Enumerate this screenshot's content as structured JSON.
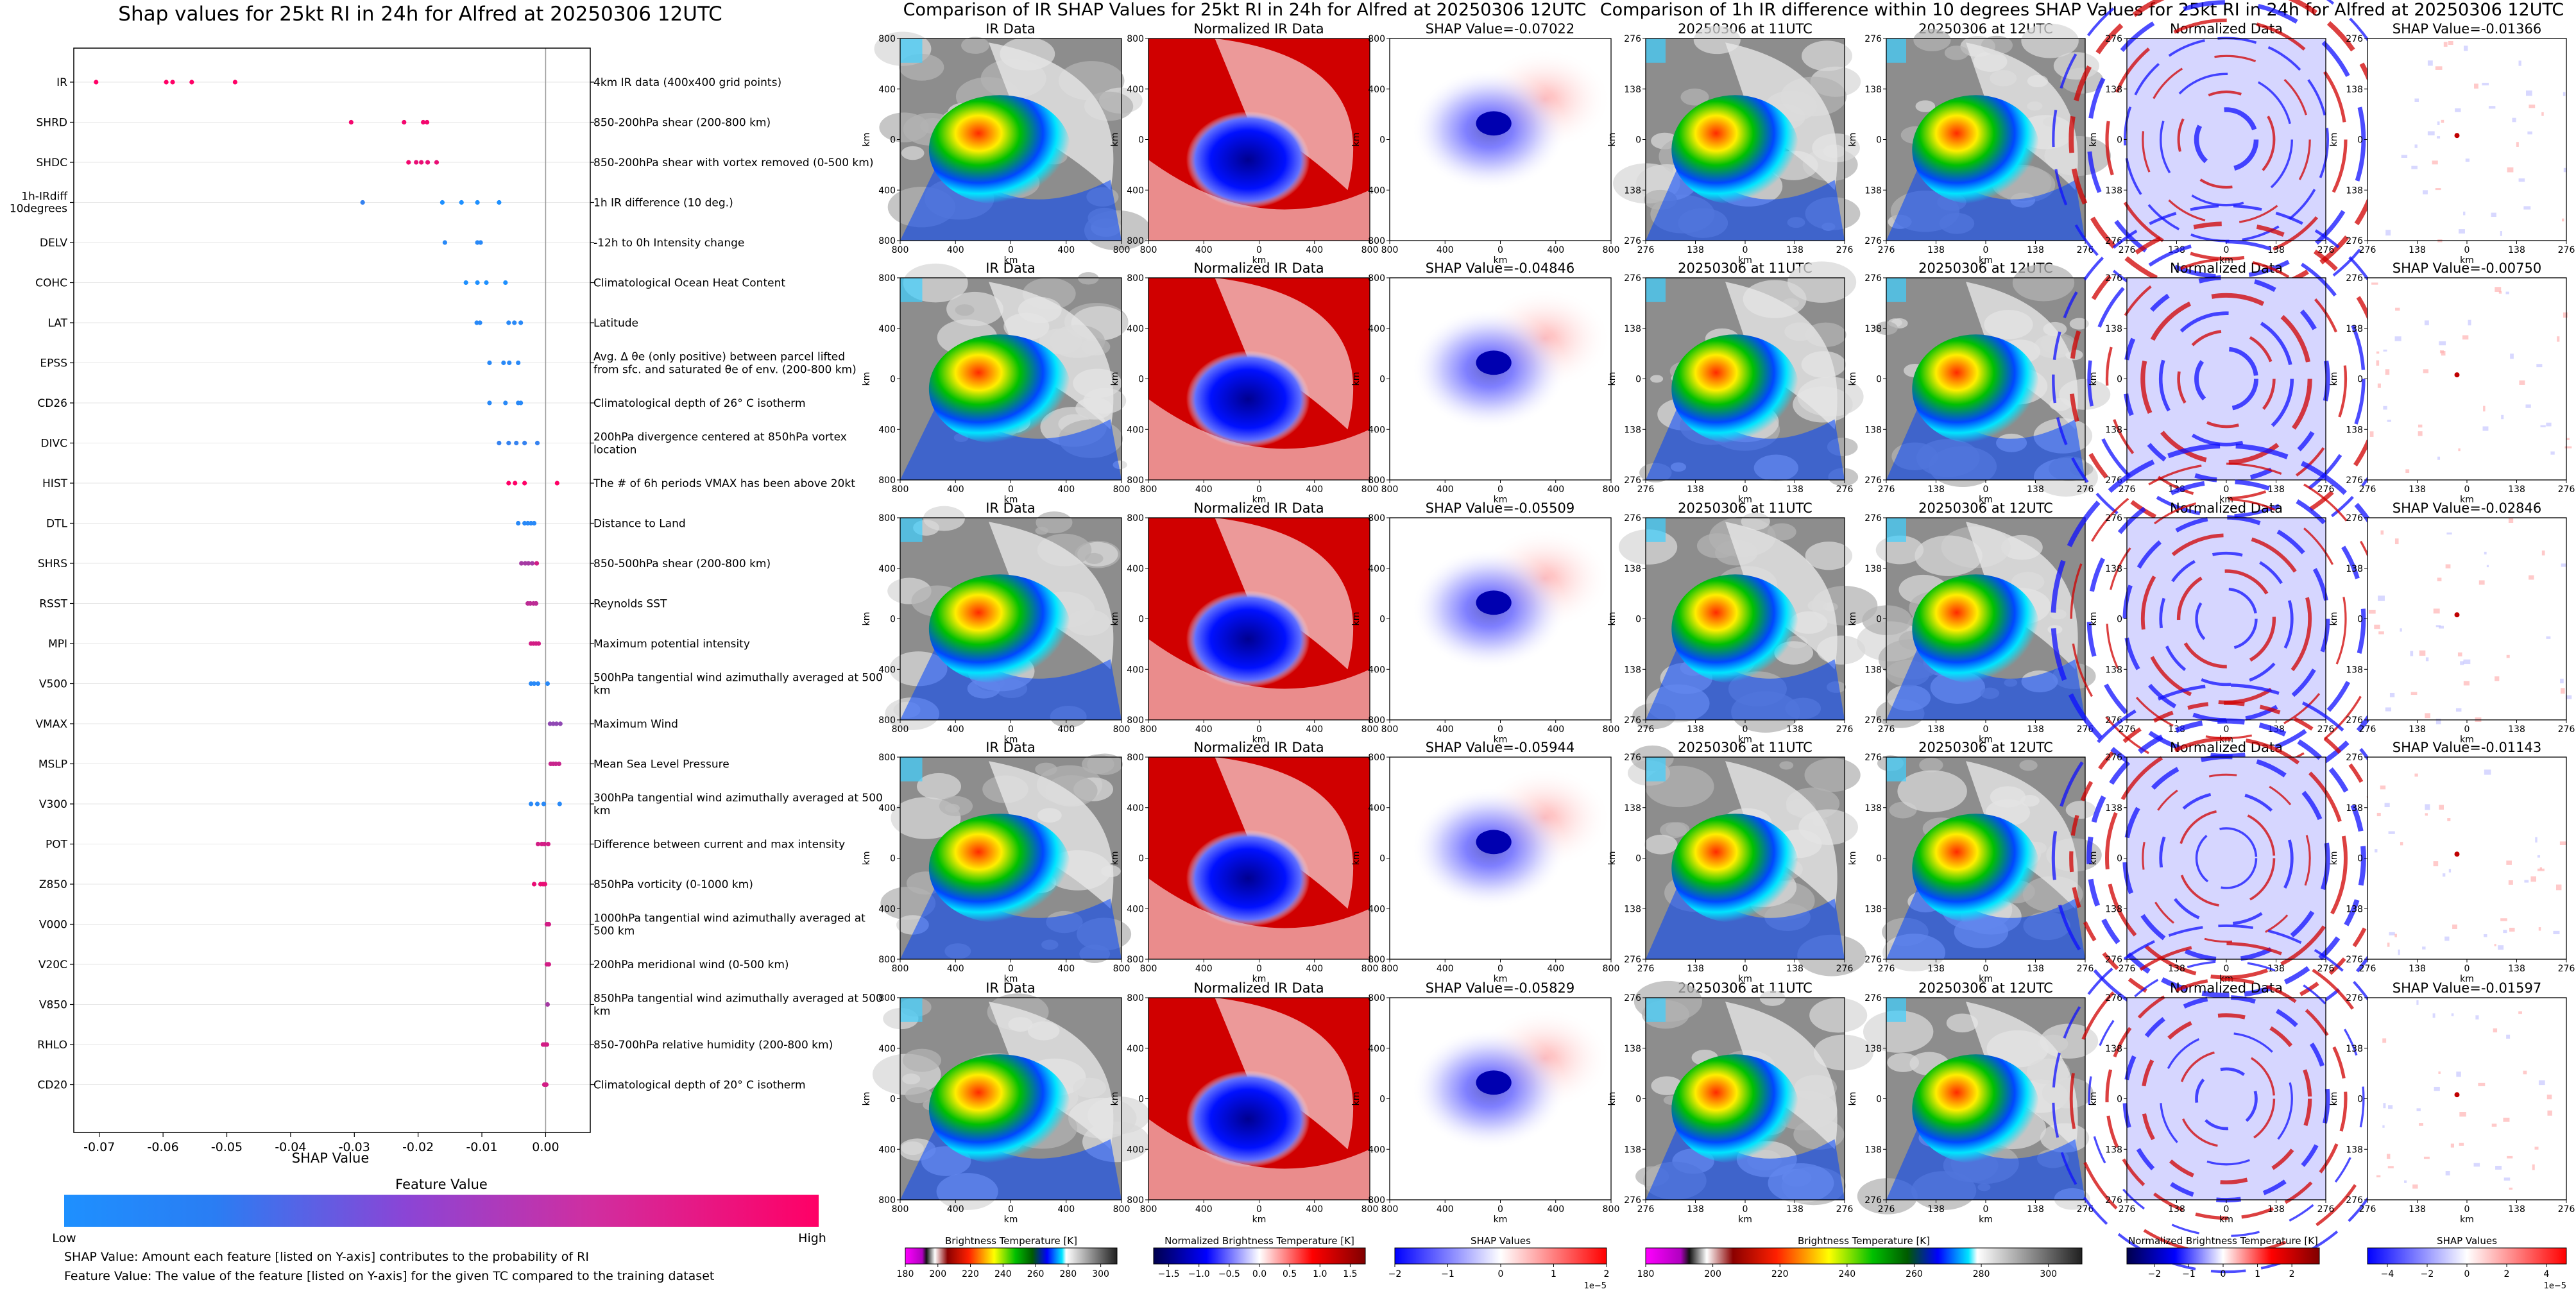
{
  "left_panel": {
    "title": "Shap values for 25kt RI in 24h for Alfred at 20250306 12UTC",
    "xlabel": "SHAP Value",
    "x_ticks": [
      "-0.07",
      "-0.06",
      "-0.05",
      "-0.04",
      "-0.03",
      "-0.02",
      "-0.01",
      "0.00"
    ],
    "colorbar_title": "Feature Value",
    "colorbar_low": "Low",
    "colorbar_high": "High",
    "footnote_1": "SHAP Value: Amount each feature [listed on Y-axis] contributes to the probability of RI",
    "footnote_2": "Feature Value: The value of the feature [listed on Y-axis] for the given TC compared to the training dataset"
  },
  "chart_data": [
    {
      "type": "scatter",
      "title": "Shap values for 25kt RI in 24h for Alfred at 20250306 12UTC",
      "xlabel": "SHAP Value",
      "xlim": [
        -0.074,
        0.007
      ],
      "color_scale": [
        "#1e90ff",
        "#ff0066"
      ],
      "features": [
        {
          "name": "IR",
          "desc": "4km IR data (400x400 grid points)",
          "points": [
            [
              -0.0705,
              1.0
            ],
            [
              -0.0595,
              1.0
            ],
            [
              -0.0585,
              1.0
            ],
            [
              -0.0555,
              1.0
            ],
            [
              -0.0487,
              1.0
            ]
          ]
        },
        {
          "name": "SHRD",
          "desc": "850-200hPa shear (200-800 km)",
          "points": [
            [
              -0.0305,
              0.95
            ],
            [
              -0.0222,
              0.95
            ],
            [
              -0.0192,
              0.95
            ],
            [
              -0.0186,
              0.95
            ]
          ]
        },
        {
          "name": "SHDC",
          "desc": "850-200hPa shear with vortex removed (0-500 km)",
          "points": [
            [
              -0.0215,
              0.95
            ],
            [
              -0.0203,
              0.9
            ],
            [
              -0.0195,
              0.9
            ],
            [
              -0.0185,
              0.9
            ],
            [
              -0.0171,
              0.9
            ]
          ]
        },
        {
          "name": "1h-IRdiff 10degrees",
          "desc": "1h IR difference (10 deg.)",
          "points": [
            [
              -0.0287,
              0.1
            ],
            [
              -0.0162,
              0.0
            ],
            [
              -0.0132,
              0.0
            ],
            [
              -0.0107,
              0.0
            ],
            [
              -0.0073,
              0.0
            ]
          ]
        },
        {
          "name": "DELV",
          "desc": "-12h to 0h Intensity change",
          "points": [
            [
              -0.0158,
              0.05
            ],
            [
              -0.0107,
              0.05
            ],
            [
              -0.0102,
              0.05
            ]
          ]
        },
        {
          "name": "COHC",
          "desc": "Climatological Ocean Heat Content",
          "points": [
            [
              -0.0125,
              0.0
            ],
            [
              -0.0107,
              0.0
            ],
            [
              -0.0093,
              0.0
            ],
            [
              -0.0063,
              0.0
            ]
          ]
        },
        {
          "name": "LAT",
          "desc": "Latitude",
          "points": [
            [
              -0.0108,
              0.05
            ],
            [
              -0.0103,
              0.05
            ],
            [
              -0.0058,
              0.05
            ],
            [
              -0.0049,
              0.05
            ],
            [
              -0.0039,
              0.05
            ]
          ]
        },
        {
          "name": "EPSS",
          "desc": "Avg. Δ θe (only positive) between parcel lifted from sfc. and saturated θe of env. (200-800 km)",
          "points": [
            [
              -0.0088,
              0.05
            ],
            [
              -0.0066,
              0.05
            ],
            [
              -0.0057,
              0.05
            ],
            [
              -0.0043,
              0.05
            ]
          ]
        },
        {
          "name": "CD26",
          "desc": "Climatological depth of 26° C isotherm",
          "points": [
            [
              -0.0088,
              0.05
            ],
            [
              -0.0063,
              0.05
            ],
            [
              -0.0043,
              0.05
            ],
            [
              -0.0039,
              0.05
            ]
          ]
        },
        {
          "name": "DIVC",
          "desc": "200hPa divergence centered at 850hPa vortex location",
          "points": [
            [
              -0.0073,
              0.1
            ],
            [
              -0.0058,
              0.1
            ],
            [
              -0.0046,
              0.1
            ],
            [
              -0.0033,
              0.1
            ],
            [
              -0.0013,
              0.1
            ]
          ]
        },
        {
          "name": "HIST",
          "desc": "The # of 6h periods VMAX has been above 20kt",
          "points": [
            [
              -0.0058,
              1.0
            ],
            [
              -0.0048,
              1.0
            ],
            [
              -0.0033,
              1.0
            ],
            [
              0.0018,
              1.0
            ]
          ]
        },
        {
          "name": "DTL",
          "desc": "Distance to Land",
          "points": [
            [
              -0.0043,
              0.05
            ],
            [
              -0.0033,
              0.05
            ],
            [
              -0.0028,
              0.05
            ],
            [
              -0.0023,
              0.05
            ],
            [
              -0.0018,
              0.05
            ]
          ]
        },
        {
          "name": "SHRS",
          "desc": "850-500hPa shear (200-800 km)",
          "points": [
            [
              -0.0038,
              0.6
            ],
            [
              -0.0032,
              0.6
            ],
            [
              -0.0027,
              0.6
            ],
            [
              -0.0021,
              0.6
            ],
            [
              -0.0014,
              0.8
            ]
          ]
        },
        {
          "name": "RSST",
          "desc": "Reynolds SST",
          "points": [
            [
              -0.0028,
              0.7
            ],
            [
              -0.0024,
              0.7
            ],
            [
              -0.0019,
              0.7
            ],
            [
              -0.0015,
              0.7
            ]
          ]
        },
        {
          "name": "MPI",
          "desc": "Maximum potential intensity",
          "points": [
            [
              -0.0023,
              0.8
            ],
            [
              -0.0019,
              0.8
            ],
            [
              -0.0015,
              0.8
            ],
            [
              -0.0011,
              0.8
            ]
          ]
        },
        {
          "name": "V500",
          "desc": "500hPa tangential wind azimuthally averaged at 500 km",
          "points": [
            [
              -0.0023,
              0.05
            ],
            [
              -0.0018,
              0.05
            ],
            [
              -0.0012,
              0.05
            ],
            [
              0.0003,
              0.05
            ]
          ]
        },
        {
          "name": "VMAX",
          "desc": "Maximum Wind",
          "points": [
            [
              0.0007,
              0.5
            ],
            [
              0.0012,
              0.5
            ],
            [
              0.0017,
              0.5
            ],
            [
              0.0023,
              0.5
            ]
          ]
        },
        {
          "name": "MSLP",
          "desc": "Mean Sea Level Pressure",
          "points": [
            [
              0.0008,
              0.75
            ],
            [
              0.0012,
              0.75
            ],
            [
              0.0016,
              0.75
            ],
            [
              0.0021,
              0.75
            ]
          ]
        },
        {
          "name": "V300",
          "desc": "300hPa tangential wind azimuthally averaged at 500 km",
          "points": [
            [
              -0.0023,
              0.05
            ],
            [
              -0.0013,
              0.05
            ],
            [
              -0.0003,
              0.05
            ],
            [
              0.0022,
              0.05
            ]
          ]
        },
        {
          "name": "POT",
          "desc": "Difference between current and max intensity",
          "points": [
            [
              -0.0012,
              0.8
            ],
            [
              -0.0006,
              0.8
            ],
            [
              -0.0002,
              0.8
            ],
            [
              0.0004,
              0.8
            ]
          ]
        },
        {
          "name": "Z850",
          "desc": "850hPa vorticity (0-1000 km)",
          "points": [
            [
              -0.0018,
              0.9
            ],
            [
              -0.0008,
              0.9
            ],
            [
              -0.0004,
              0.9
            ],
            [
              -0.0001,
              0.9
            ]
          ]
        },
        {
          "name": "V000",
          "desc": "1000hPa tangential wind azimuthally averaged at 500 km",
          "points": [
            [
              0.0002,
              0.8
            ],
            [
              0.0005,
              0.8
            ]
          ]
        },
        {
          "name": "V20C",
          "desc": "200hPa meridional wind (0-500 km)",
          "points": [
            [
              0.0002,
              0.8
            ],
            [
              0.0005,
              0.8
            ]
          ]
        },
        {
          "name": "V850",
          "desc": "850hPa tangential wind azimuthally averaged at 500 km",
          "points": [
            [
              0.0003,
              0.6
            ]
          ]
        },
        {
          "name": "RHLO",
          "desc": "850-700hPa relative humidity (200-800 km)",
          "points": [
            [
              -0.0004,
              0.8
            ],
            [
              -0.0001,
              0.8
            ],
            [
              0.0002,
              0.8
            ]
          ]
        },
        {
          "name": "CD20",
          "desc": "Climatological depth of 20° C isotherm",
          "points": [
            [
              -0.0002,
              0.8
            ],
            [
              0.0001,
              0.8
            ]
          ]
        }
      ]
    },
    {
      "type": "heatmap",
      "suptitle": "Comparison of IR SHAP Values for 25kt RI in 24h for Alfred at 20250306 12UTC",
      "columns": [
        "IR Data",
        "Normalized IR Data",
        "SHAP Value"
      ],
      "shap_values": [
        "-0.07022",
        "-0.04846",
        "-0.05509",
        "-0.05944",
        "-0.05829"
      ],
      "axis_label": "km",
      "x_ticks": [
        "800",
        "400",
        "0",
        "400",
        "800"
      ],
      "y_ticks": [
        "800",
        "400",
        "0",
        "400",
        "800"
      ],
      "colorbars": [
        {
          "label": "Brightness Temperature [K]",
          "ticks": [
            "180",
            "200",
            "220",
            "240",
            "260",
            "280",
            "300"
          ],
          "range": [
            180,
            310
          ],
          "sci": ""
        },
        {
          "label": "Normalized Brightness Temperature [K]",
          "ticks": [
            "−1.5",
            "−1.0",
            "−0.5",
            "0.0",
            "0.5",
            "1.0",
            "1.5"
          ],
          "range": [
            -1.75,
            1.75
          ],
          "sci": ""
        },
        {
          "label": "SHAP Values",
          "ticks": [
            "−2",
            "−1",
            "0",
            "1",
            "2"
          ],
          "range": [
            -2,
            2
          ],
          "sci": "1e−5"
        }
      ]
    },
    {
      "type": "heatmap",
      "suptitle": "Comparison of 1h IR difference within 10 degrees SHAP Values for 25kt RI in 24h for Alfred at 20250306 12UTC",
      "columns": [
        "20250306 at 11UTC",
        "20250306 at 12UTC",
        "Normalized Data",
        "SHAP Value"
      ],
      "shap_values": [
        "-0.01366",
        "-0.00750",
        "-0.02846",
        "-0.01143",
        "-0.01597"
      ],
      "axis_label": "km",
      "x_ticks": [
        "276",
        "138",
        "0",
        "138",
        "276"
      ],
      "y_ticks": [
        "276",
        "138",
        "0",
        "138",
        "276"
      ],
      "colorbars": [
        {
          "label": "Brightness Temperature [K]",
          "ticks": [
            "180",
            "200",
            "220",
            "240",
            "260",
            "280",
            "300"
          ],
          "range": [
            180,
            310
          ],
          "sci": ""
        },
        {
          "label": "Normalized Brightness Temperature [K]",
          "ticks": [
            "−2",
            "−1",
            "0",
            "1",
            "2"
          ],
          "range": [
            -2.8,
            2.8
          ],
          "sci": ""
        },
        {
          "label": "SHAP Values",
          "ticks": [
            "−4",
            "−2",
            "0",
            "2",
            "4"
          ],
          "range": [
            -5,
            5
          ],
          "sci": "1e−5"
        }
      ]
    }
  ],
  "colors": {
    "low": "#1e90ff",
    "high": "#ff0066",
    "grid": "#e6e6e6"
  }
}
